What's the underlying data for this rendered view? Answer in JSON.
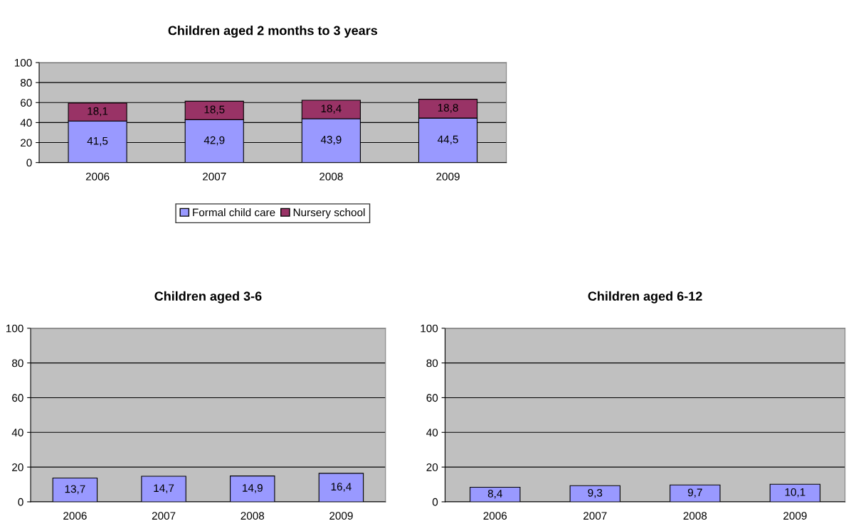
{
  "chart_data": [
    {
      "type": "bar",
      "title": "Children aged 2 months to 3 years",
      "categories": [
        "2006",
        "2007",
        "2008",
        "2009"
      ],
      "stacked": true,
      "series": [
        {
          "name": "Formal child care",
          "color": "#9999ff",
          "values": [
            41.5,
            42.9,
            43.9,
            44.5
          ],
          "value_labels": [
            "41,5",
            "42,9",
            "43,9",
            "44,5"
          ]
        },
        {
          "name": "Nursery school",
          "color": "#993366",
          "values": [
            18.1,
            18.5,
            18.4,
            18.8
          ],
          "value_labels": [
            "18,1",
            "18,5",
            "18,4",
            "18,8"
          ]
        }
      ],
      "ylim": [
        0,
        100
      ],
      "yticks": [
        0,
        20,
        40,
        60,
        80,
        100
      ],
      "grid": "y",
      "legend": "bottom"
    },
    {
      "type": "bar",
      "title": "Children aged 3-6",
      "categories": [
        "2006",
        "2007",
        "2008",
        "2009"
      ],
      "series": [
        {
          "color": "#9999ff",
          "values": [
            13.7,
            14.7,
            14.9,
            16.4
          ],
          "value_labels": [
            "13,7",
            "14,7",
            "14,9",
            "16,4"
          ]
        }
      ],
      "ylim": [
        0,
        100
      ],
      "yticks": [
        0,
        20,
        40,
        60,
        80,
        100
      ],
      "grid": "y"
    },
    {
      "type": "bar",
      "title": "Children aged 6-12",
      "categories": [
        "2006",
        "2007",
        "2008",
        "2009"
      ],
      "series": [
        {
          "color": "#9999ff",
          "values": [
            8.4,
            9.3,
            9.7,
            10.1
          ],
          "value_labels": [
            "8,4",
            "9,3",
            "9,7",
            "10,1"
          ]
        }
      ],
      "ylim": [
        0,
        100
      ],
      "yticks": [
        0,
        20,
        40,
        60,
        80,
        100
      ],
      "grid": "y"
    }
  ]
}
